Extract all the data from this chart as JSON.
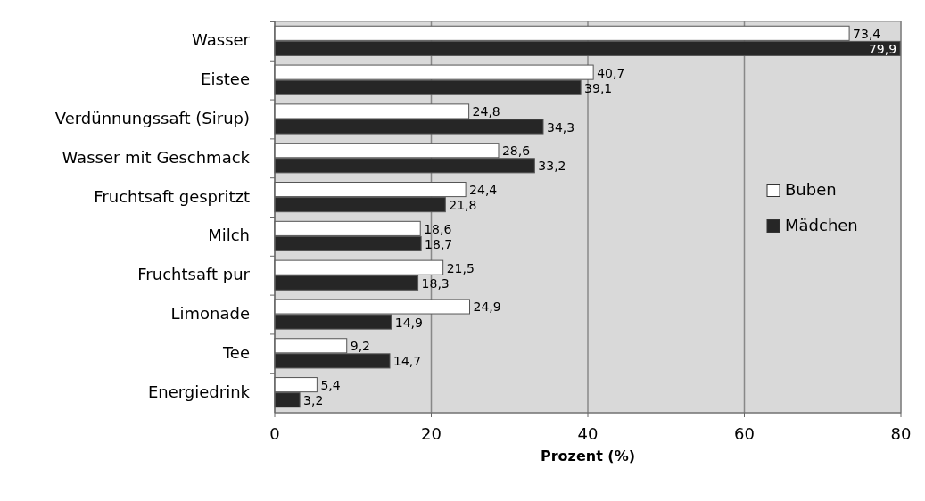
{
  "chart_data": {
    "type": "bar",
    "orientation": "horizontal",
    "xlabel": "Prozent (%)",
    "categories": [
      "Wasser",
      "Eistee",
      "Verdünnungssaft (Sirup)",
      "Wasser mit Geschmack",
      "Fruchtsaft gespritzt",
      "Milch",
      "Fruchtsaft pur",
      "Limonade",
      "Tee",
      "Energiedrink"
    ],
    "series": [
      {
        "name": "Buben",
        "color": "#ffffff",
        "values": [
          73.4,
          40.7,
          24.8,
          28.6,
          24.4,
          18.6,
          21.5,
          24.9,
          9.2,
          5.4
        ],
        "value_labels": [
          "73,4",
          "40,7",
          "24,8",
          "28,6",
          "24,4",
          "18,6",
          "21,5",
          "24,9",
          "9,2",
          "5,4"
        ]
      },
      {
        "name": "Mädchen",
        "color": "#262626",
        "values": [
          79.9,
          39.1,
          34.3,
          33.2,
          21.8,
          18.7,
          18.3,
          14.9,
          14.7,
          3.2
        ],
        "value_labels": [
          "79,9",
          "39,1",
          "34,3",
          "33,2",
          "21,8",
          "18,7",
          "18,3",
          "14,9",
          "14,7",
          "3,2"
        ]
      }
    ],
    "xlim": [
      0,
      80
    ],
    "xticks": [
      0,
      20,
      40,
      60,
      80
    ],
    "grid": "x",
    "legend": "right"
  }
}
